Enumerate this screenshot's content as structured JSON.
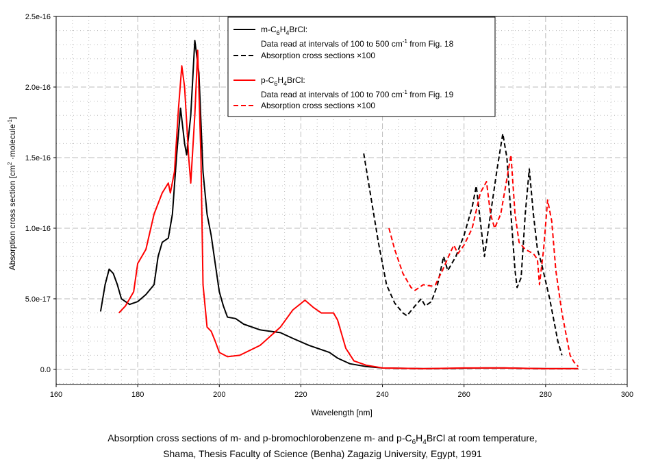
{
  "chart_data": {
    "type": "line",
    "xlabel": "Wavelength [nm]",
    "ylabel_parts": {
      "main": "Absorption cross section [cm",
      "sup1": "2",
      "mid": " ·molecule",
      "sup2": "-1",
      "end": "]"
    },
    "y_unit_note": "values in units of 1e-16 cm2/molecule",
    "xlim": [
      160,
      300
    ],
    "ylim": [
      -0.107,
      2.5
    ],
    "x_ticks": [
      160,
      180,
      200,
      220,
      240,
      260,
      280,
      300
    ],
    "y_ticks": [
      0,
      0.5,
      1.0,
      1.5,
      2.0,
      2.5
    ],
    "y_tick_labels": [
      "0.0",
      "5.0e-17",
      "1.0e-16",
      "1.5e-16",
      "2.0e-16",
      "2.5e-16"
    ],
    "grid": true,
    "legend_position": "top-center",
    "legend": {
      "m_formula": [
        "m-C",
        "6",
        "H",
        "4",
        "BrCl:"
      ],
      "m_note": [
        "Data read at intervals of 100 to 500 cm",
        "-1",
        " from Fig. 18"
      ],
      "m_dashed": "Absorption cross sections ×100",
      "p_formula": [
        "p-C",
        "6",
        "H",
        "4",
        "BrCl:"
      ],
      "p_note": [
        "Data read at intervals of 100 to 700 cm",
        "-1",
        " from Fig. 19"
      ],
      "p_dashed": "Absorption cross sections ×100"
    },
    "series": [
      {
        "name": "m-C6H4BrCl",
        "color": "#000000",
        "dash": false,
        "x": [
          170.9,
          172,
          173,
          174,
          175,
          176,
          177,
          178,
          180,
          182,
          184,
          185,
          186,
          187.5,
          188.5,
          189.5,
          190.5,
          191.5,
          192,
          193,
          194,
          195,
          196,
          197,
          198,
          199,
          200,
          201,
          202,
          204,
          206,
          210,
          215,
          218,
          222,
          225,
          227,
          229,
          232,
          236,
          240,
          250,
          265,
          270,
          280,
          288
        ],
        "y": [
          0.41,
          0.6,
          0.71,
          0.68,
          0.6,
          0.5,
          0.48,
          0.46,
          0.48,
          0.53,
          0.6,
          0.8,
          0.9,
          0.93,
          1.1,
          1.5,
          1.85,
          1.6,
          1.52,
          1.8,
          2.33,
          2.1,
          1.4,
          1.1,
          0.95,
          0.75,
          0.55,
          0.45,
          0.37,
          0.36,
          0.32,
          0.28,
          0.26,
          0.22,
          0.17,
          0.14,
          0.12,
          0.08,
          0.04,
          0.02,
          0.01,
          0.005,
          0.01,
          0.01,
          0.005,
          0.005
        ]
      },
      {
        "name": "p-C6H4BrCl",
        "color": "#ff0000",
        "dash": false,
        "x": [
          175.4,
          177,
          179,
          180,
          182,
          184,
          186,
          187.5,
          188,
          189,
          190,
          190.8,
          191.5,
          192.5,
          193,
          194,
          194.7,
          195.5,
          196,
          197,
          198,
          199,
          200,
          202,
          205,
          210,
          215,
          218,
          221,
          223,
          225,
          228,
          229,
          231,
          233,
          236,
          240,
          250,
          260,
          270,
          280,
          288
        ],
        "y": [
          0.4,
          0.45,
          0.55,
          0.75,
          0.85,
          1.1,
          1.25,
          1.32,
          1.25,
          1.4,
          1.85,
          2.15,
          2.0,
          1.5,
          1.32,
          1.8,
          2.26,
          1.5,
          0.6,
          0.3,
          0.27,
          0.2,
          0.12,
          0.09,
          0.1,
          0.17,
          0.3,
          0.42,
          0.49,
          0.44,
          0.4,
          0.4,
          0.35,
          0.15,
          0.06,
          0.03,
          0.01,
          0.005,
          0.01,
          0.01,
          0.005,
          0.005
        ]
      },
      {
        "name": "m-C6H4BrCl x100",
        "color": "#000000",
        "dash": true,
        "x": [
          235.4,
          237,
          239,
          241,
          243,
          245,
          246,
          248,
          249.5,
          250.5,
          252,
          253.5,
          255,
          256,
          258,
          260,
          262,
          263,
          264,
          265,
          266.5,
          268,
          269.5,
          270.5,
          271.5,
          272.5,
          273,
          274,
          275,
          276,
          277,
          278,
          279,
          281,
          283,
          284
        ],
        "y": [
          1.53,
          1.25,
          0.9,
          0.6,
          0.47,
          0.4,
          0.38,
          0.45,
          0.5,
          0.45,
          0.48,
          0.6,
          0.8,
          0.7,
          0.8,
          0.95,
          1.15,
          1.3,
          1.05,
          0.8,
          1.1,
          1.4,
          1.67,
          1.5,
          1.1,
          0.7,
          0.58,
          0.65,
          1.1,
          1.42,
          1.1,
          0.85,
          0.75,
          0.5,
          0.2,
          0.1
        ]
      },
      {
        "name": "p-C6H4BrCl x100",
        "color": "#ff0000",
        "dash": true,
        "x": [
          241.6,
          243,
          245,
          247,
          248,
          250,
          252,
          253,
          255,
          256.5,
          257.5,
          258.5,
          260,
          262,
          264,
          265.5,
          266.5,
          267.5,
          269,
          270.5,
          271.5,
          272.5,
          273.5,
          275,
          277,
          278,
          278.5,
          279.5,
          280.5,
          281.5,
          282.5,
          284,
          286,
          287,
          288
        ],
        "y": [
          1.0,
          0.85,
          0.68,
          0.58,
          0.56,
          0.6,
          0.59,
          0.6,
          0.72,
          0.82,
          0.88,
          0.82,
          0.88,
          1.0,
          1.25,
          1.33,
          1.1,
          1.0,
          1.1,
          1.35,
          1.52,
          1.1,
          0.9,
          0.85,
          0.82,
          0.78,
          0.6,
          0.85,
          1.2,
          1.05,
          0.7,
          0.4,
          0.1,
          0.05,
          0.02
        ]
      }
    ]
  },
  "caption": {
    "line1_parts": [
      "Absorption cross sections of m- and p-bromochlorobenzene m- and p-C",
      "6",
      "H",
      "4",
      "BrCl at room temperature,"
    ],
    "line2": "Shama, Thesis Faculty of Science (Benha) Zagazig University, Egypt, 1991"
  }
}
